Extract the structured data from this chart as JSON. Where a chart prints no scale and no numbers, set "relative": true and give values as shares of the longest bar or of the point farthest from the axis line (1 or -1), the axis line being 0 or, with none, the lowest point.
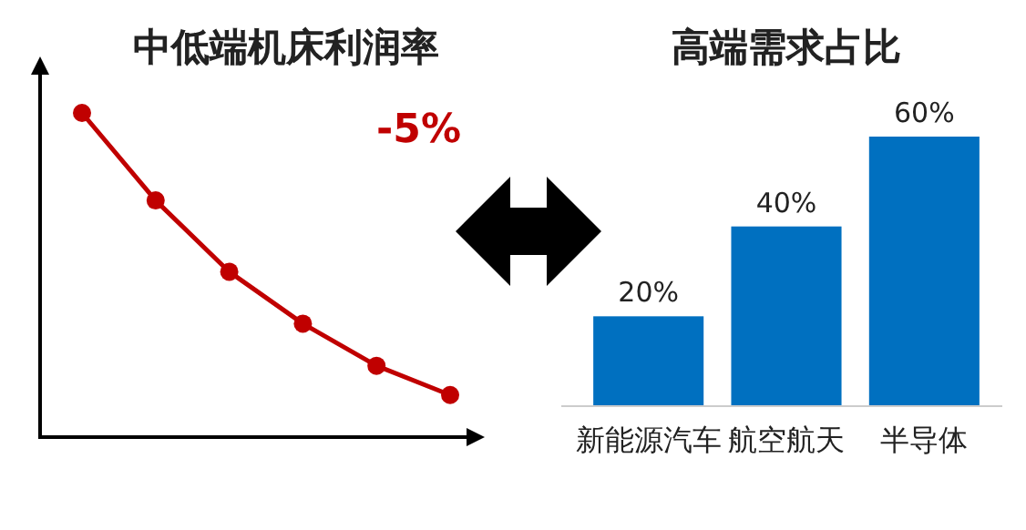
{
  "chart_data": [
    {
      "type": "line",
      "title": "中低端机床利润率",
      "annotations": [
        "-5%"
      ],
      "categories": [
        null,
        null,
        null,
        null,
        null,
        null
      ],
      "relative": true,
      "marker": "circle",
      "series": [
        {
          "color": "#c00000",
          "values": [
            1,
            0.73,
            0.51,
            0.35,
            0.22,
            0.13
          ]
        }
      ]
    },
    {
      "type": "bar",
      "title": "高端需求占比",
      "categories": [
        "新能源汽车",
        "航空航天",
        "半导体"
      ],
      "tick_labels": "x",
      "series": [
        {
          "color": "#0070c0",
          "values": [
            20,
            40,
            60
          ],
          "value_labels": [
            "20%",
            "40%",
            "60%"
          ]
        }
      ]
    }
  ]
}
